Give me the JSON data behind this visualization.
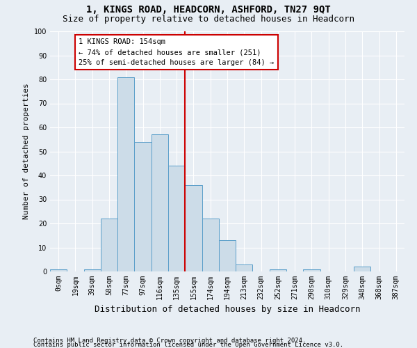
{
  "title": "1, KINGS ROAD, HEADCORN, ASHFORD, TN27 9QT",
  "subtitle": "Size of property relative to detached houses in Headcorn",
  "xlabel": "Distribution of detached houses by size in Headcorn",
  "ylabel": "Number of detached properties",
  "bar_labels": [
    "0sqm",
    "19sqm",
    "39sqm",
    "58sqm",
    "77sqm",
    "97sqm",
    "116sqm",
    "135sqm",
    "155sqm",
    "174sqm",
    "194sqm",
    "213sqm",
    "232sqm",
    "252sqm",
    "271sqm",
    "290sqm",
    "310sqm",
    "329sqm",
    "348sqm",
    "368sqm",
    "387sqm"
  ],
  "bar_values": [
    1,
    0,
    1,
    22,
    81,
    54,
    57,
    44,
    36,
    22,
    13,
    3,
    0,
    1,
    0,
    1,
    0,
    0,
    2,
    0,
    0
  ],
  "bar_color": "#ccdce8",
  "bar_edge_color": "#5a9ec9",
  "ylim": [
    0,
    100
  ],
  "yticks": [
    0,
    10,
    20,
    30,
    40,
    50,
    60,
    70,
    80,
    90,
    100
  ],
  "marker_bin_index": 8,
  "marker_line_color": "#cc0000",
  "annotation_line1": "1 KINGS ROAD: 154sqm",
  "annotation_line2": "← 74% of detached houses are smaller (251)",
  "annotation_line3": "25% of semi-detached houses are larger (84) →",
  "box_color": "#cc0000",
  "footer1": "Contains HM Land Registry data © Crown copyright and database right 2024.",
  "footer2": "Contains public sector information licensed under the Open Government Licence v3.0.",
  "background_color": "#e8eef4",
  "grid_color": "#ffffff",
  "title_fontsize": 10,
  "subtitle_fontsize": 9,
  "xlabel_fontsize": 9,
  "ylabel_fontsize": 8,
  "tick_fontsize": 7,
  "annotation_fontsize": 7.5,
  "footer_fontsize": 6.5
}
